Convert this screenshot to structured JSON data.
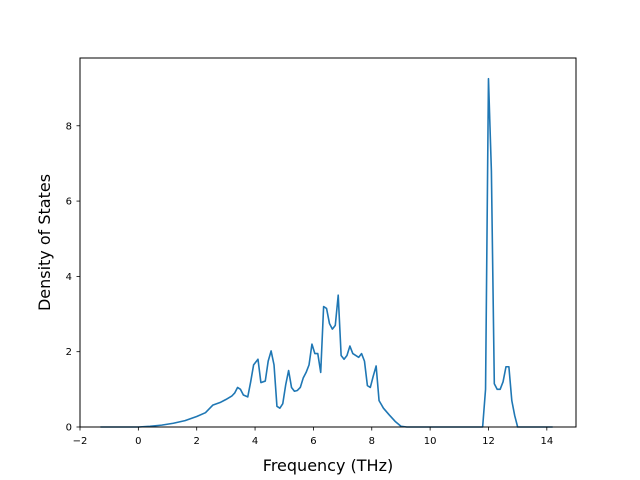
{
  "chart_data": {
    "type": "line",
    "title": "",
    "xlabel": "Frequency (THz)",
    "ylabel": "Density of States",
    "xlim": [
      -2.0,
      15.0
    ],
    "ylim": [
      0,
      9.8
    ],
    "xticks": [
      -2,
      0,
      2,
      4,
      6,
      8,
      10,
      12,
      14
    ],
    "xtick_labels": [
      "−2",
      "0",
      "2",
      "4",
      "6",
      "8",
      "10",
      "12",
      "14"
    ],
    "yticks": [
      0,
      2,
      4,
      6,
      8
    ],
    "ytick_labels": [
      "0",
      "2",
      "4",
      "6",
      "8"
    ],
    "grid": false,
    "legend": "none",
    "color": "#1f77b4",
    "series": [
      {
        "x": [
          -1.3,
          0.0,
          0.4,
          0.8,
          1.2,
          1.6,
          2.0,
          2.3,
          2.45,
          2.55,
          2.8,
          3.0,
          3.2,
          3.3,
          3.4,
          3.5,
          3.6,
          3.75,
          3.85,
          3.95,
          4.0,
          4.1,
          4.2,
          4.35,
          4.45,
          4.55,
          4.65,
          4.75,
          4.85,
          4.95,
          5.05,
          5.15,
          5.25,
          5.35,
          5.45,
          5.55,
          5.65,
          5.75,
          5.85,
          5.95,
          6.05,
          6.15,
          6.25,
          6.35,
          6.45,
          6.55,
          6.65,
          6.75,
          6.85,
          6.95,
          7.05,
          7.15,
          7.25,
          7.35,
          7.45,
          7.55,
          7.65,
          7.75,
          7.85,
          7.95,
          8.05,
          8.15,
          8.25,
          8.4,
          8.6,
          8.8,
          9.0,
          9.2,
          10.0,
          11.0,
          11.8,
          11.9,
          12.0,
          12.1,
          12.2,
          12.3,
          12.4,
          12.5,
          12.6,
          12.7,
          12.8,
          12.9,
          13.0,
          14.0,
          14.2
        ],
        "y": [
          0.0,
          0.0,
          0.02,
          0.05,
          0.1,
          0.17,
          0.28,
          0.38,
          0.5,
          0.58,
          0.65,
          0.73,
          0.82,
          0.9,
          1.05,
          1.0,
          0.85,
          0.8,
          1.2,
          1.65,
          1.7,
          1.8,
          1.18,
          1.22,
          1.75,
          2.02,
          1.65,
          0.55,
          0.5,
          0.62,
          1.12,
          1.5,
          1.05,
          0.95,
          0.97,
          1.05,
          1.3,
          1.45,
          1.65,
          2.2,
          1.95,
          1.95,
          1.45,
          3.2,
          3.15,
          2.75,
          2.6,
          2.7,
          3.5,
          1.9,
          1.8,
          1.9,
          2.15,
          1.95,
          1.9,
          1.85,
          1.95,
          1.75,
          1.1,
          1.05,
          1.35,
          1.62,
          0.7,
          0.5,
          0.32,
          0.15,
          0.02,
          0.0,
          0.0,
          0.0,
          0.0,
          1.0,
          9.25,
          6.8,
          1.15,
          1.0,
          1.0,
          1.2,
          1.6,
          1.6,
          0.7,
          0.3,
          0.0,
          0.0,
          0.0
        ]
      }
    ]
  }
}
